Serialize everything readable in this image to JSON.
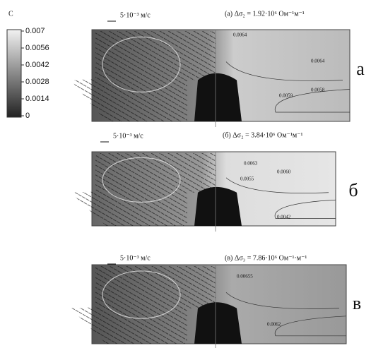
{
  "colorbar": {
    "label": "C",
    "ticks": [
      "0.007",
      "0.0056",
      "0.0042",
      "0.0028",
      "0.0014",
      "0"
    ]
  },
  "panels": [
    {
      "scale": "5·10⁻³ м/с",
      "title": "(а) Δσ₂ = 1.92·10⁶ Ом⁻¹м⁻¹",
      "contours": [
        "0.0064",
        "0.0064",
        "0.0059",
        "0.0058"
      ],
      "letter": "а"
    },
    {
      "scale": "5·10⁻³ м/с",
      "title": "(б) Δσ₂ = 3.84·10⁶ Ом⁻¹м⁻¹",
      "contours": [
        "0.0063",
        "0.0060",
        "0.0055",
        "0.0042"
      ],
      "letter": "б"
    },
    {
      "scale": "5·10⁻³ м/с",
      "title": "(в) Δσ₃ = 7.86·10⁶ Ом⁻¹·м⁻¹",
      "contours": [
        "0.00655",
        "0.0062"
      ],
      "letter": "в"
    }
  ]
}
